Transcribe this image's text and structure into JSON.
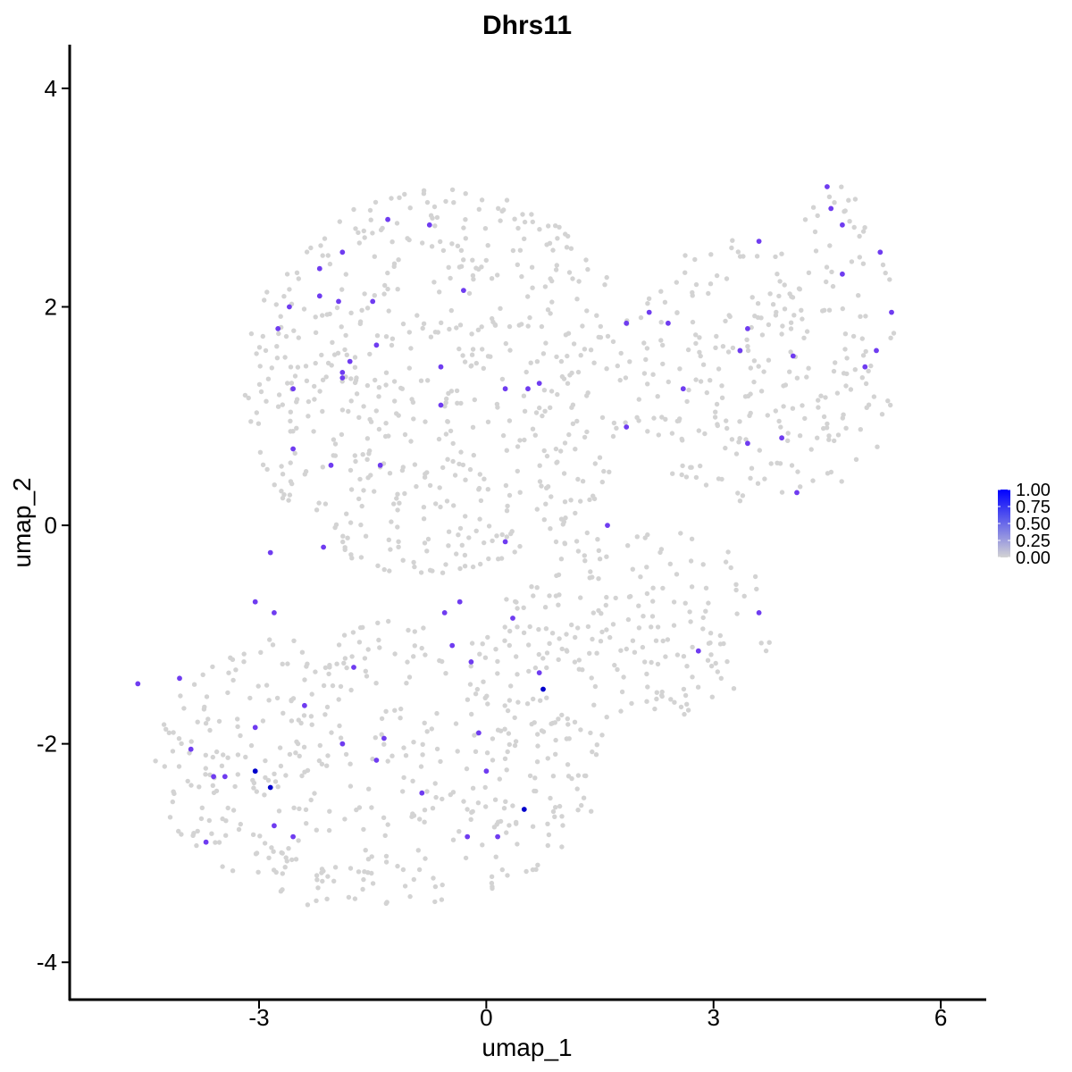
{
  "chart_data": {
    "type": "scatter",
    "title": "Dhrs11",
    "xlabel": "umap_1",
    "ylabel": "umap_2",
    "xlim": [
      -5.5,
      6.6
    ],
    "ylim": [
      -4.35,
      4.4
    ],
    "x_ticks": [
      -3,
      0,
      3,
      6
    ],
    "y_ticks": [
      -4,
      -2,
      0,
      2,
      4
    ],
    "x_tick_labels": [
      "-3",
      "0",
      "3",
      "6"
    ],
    "y_tick_labels": [
      "-4",
      "-2",
      "0",
      "2",
      "4"
    ],
    "grid": false,
    "legend": {
      "position": "right",
      "type": "colorbar",
      "labels": [
        "1.00",
        "0.75",
        "0.50",
        "0.25",
        "0.00"
      ],
      "values": [
        1.0,
        0.75,
        0.5,
        0.25,
        0.0
      ],
      "color_low": "#d3d3d3",
      "color_high": "#0000ff"
    },
    "background_points": {
      "color": "#d3d3d3",
      "count": 1500,
      "expression": 0,
      "region": "cells in a tilted cloud from about (-4.7,-1.3) to (5.3,2.4); lower-left lobe reaches down to about y=-3.5, upper-left lobe reaches about y=3.2"
    },
    "expressing_points": [
      {
        "x": -2.2,
        "y": 2.35,
        "value": 0.7
      },
      {
        "x": -1.9,
        "y": 2.5,
        "value": 0.7
      },
      {
        "x": -1.3,
        "y": 2.8,
        "value": 0.7
      },
      {
        "x": -0.75,
        "y": 2.75,
        "value": 0.7
      },
      {
        "x": -2.2,
        "y": 2.1,
        "value": 0.7
      },
      {
        "x": -1.95,
        "y": 2.05,
        "value": 0.7
      },
      {
        "x": -1.5,
        "y": 2.05,
        "value": 0.7
      },
      {
        "x": -0.3,
        "y": 2.15,
        "value": 0.7
      },
      {
        "x": -2.6,
        "y": 2.0,
        "value": 0.7
      },
      {
        "x": -2.75,
        "y": 1.8,
        "value": 0.7
      },
      {
        "x": -1.45,
        "y": 1.65,
        "value": 0.7
      },
      {
        "x": -1.8,
        "y": 1.5,
        "value": 0.7
      },
      {
        "x": -1.9,
        "y": 1.4,
        "value": 0.7
      },
      {
        "x": -1.9,
        "y": 1.35,
        "value": 0.7
      },
      {
        "x": -0.6,
        "y": 1.45,
        "value": 0.7
      },
      {
        "x": -2.55,
        "y": 1.25,
        "value": 0.7
      },
      {
        "x": -0.6,
        "y": 1.1,
        "value": 0.7
      },
      {
        "x": 0.25,
        "y": 1.25,
        "value": 0.7
      },
      {
        "x": 0.55,
        "y": 1.25,
        "value": 0.7
      },
      {
        "x": 0.7,
        "y": 1.3,
        "value": 0.7
      },
      {
        "x": -2.55,
        "y": 0.7,
        "value": 0.7
      },
      {
        "x": -2.05,
        "y": 0.55,
        "value": 0.7
      },
      {
        "x": -1.4,
        "y": 0.55,
        "value": 0.7
      },
      {
        "x": 1.85,
        "y": 1.85,
        "value": 0.7
      },
      {
        "x": 2.15,
        "y": 1.95,
        "value": 0.7
      },
      {
        "x": 2.4,
        "y": 1.85,
        "value": 0.7
      },
      {
        "x": 1.85,
        "y": 0.9,
        "value": 0.7
      },
      {
        "x": 2.6,
        "y": 1.25,
        "value": 0.7
      },
      {
        "x": 3.35,
        "y": 1.6,
        "value": 0.7
      },
      {
        "x": 3.45,
        "y": 1.8,
        "value": 0.7
      },
      {
        "x": 3.6,
        "y": 2.6,
        "value": 0.7
      },
      {
        "x": 3.45,
        "y": 0.75,
        "value": 0.7
      },
      {
        "x": 3.9,
        "y": 0.8,
        "value": 0.7
      },
      {
        "x": 4.05,
        "y": 1.55,
        "value": 0.7
      },
      {
        "x": 4.1,
        "y": 0.3,
        "value": 0.7
      },
      {
        "x": 4.5,
        "y": 3.1,
        "value": 0.7
      },
      {
        "x": 4.55,
        "y": 2.9,
        "value": 0.7
      },
      {
        "x": 4.7,
        "y": 2.75,
        "value": 0.7
      },
      {
        "x": 4.7,
        "y": 2.3,
        "value": 0.7
      },
      {
        "x": 5.2,
        "y": 2.5,
        "value": 0.7
      },
      {
        "x": 5.35,
        "y": 1.95,
        "value": 0.7
      },
      {
        "x": 5.0,
        "y": 1.45,
        "value": 0.7
      },
      {
        "x": 5.15,
        "y": 1.6,
        "value": 0.7
      },
      {
        "x": 1.6,
        "y": 0.0,
        "value": 0.7
      },
      {
        "x": 0.25,
        "y": -0.15,
        "value": 0.7
      },
      {
        "x": -2.85,
        "y": -0.25,
        "value": 0.7
      },
      {
        "x": -2.15,
        "y": -0.2,
        "value": 0.7
      },
      {
        "x": -3.05,
        "y": -0.7,
        "value": 0.7
      },
      {
        "x": -2.8,
        "y": -0.8,
        "value": 0.7
      },
      {
        "x": -0.35,
        "y": -0.7,
        "value": 0.7
      },
      {
        "x": -0.55,
        "y": -0.8,
        "value": 0.7
      },
      {
        "x": 0.35,
        "y": -0.85,
        "value": 0.7
      },
      {
        "x": -0.45,
        "y": -1.1,
        "value": 0.7
      },
      {
        "x": -0.2,
        "y": -1.25,
        "value": 0.7
      },
      {
        "x": 2.8,
        "y": -1.15,
        "value": 0.7
      },
      {
        "x": 3.6,
        "y": -0.8,
        "value": 0.7
      },
      {
        "x": -4.6,
        "y": -1.45,
        "value": 0.7
      },
      {
        "x": -4.05,
        "y": -1.4,
        "value": 0.7
      },
      {
        "x": -1.75,
        "y": -1.3,
        "value": 0.7
      },
      {
        "x": -2.4,
        "y": -1.65,
        "value": 0.7
      },
      {
        "x": 0.7,
        "y": -1.35,
        "value": 0.7
      },
      {
        "x": 0.75,
        "y": -1.5,
        "value": 1.0
      },
      {
        "x": -3.9,
        "y": -2.05,
        "value": 0.7
      },
      {
        "x": -3.05,
        "y": -1.85,
        "value": 0.7
      },
      {
        "x": -1.9,
        "y": -2.0,
        "value": 0.7
      },
      {
        "x": -1.35,
        "y": -1.95,
        "value": 0.7
      },
      {
        "x": -1.45,
        "y": -2.15,
        "value": 0.7
      },
      {
        "x": -0.1,
        "y": -1.9,
        "value": 0.7
      },
      {
        "x": -3.6,
        "y": -2.3,
        "value": 0.7
      },
      {
        "x": -3.45,
        "y": -2.3,
        "value": 0.7
      },
      {
        "x": -3.05,
        "y": -2.25,
        "value": 1.0
      },
      {
        "x": -2.85,
        "y": -2.4,
        "value": 1.0
      },
      {
        "x": -0.85,
        "y": -2.45,
        "value": 0.7
      },
      {
        "x": 0.0,
        "y": -2.25,
        "value": 0.7
      },
      {
        "x": 0.5,
        "y": -2.6,
        "value": 1.0
      },
      {
        "x": -2.8,
        "y": -2.75,
        "value": 0.7
      },
      {
        "x": -2.55,
        "y": -2.85,
        "value": 0.7
      },
      {
        "x": -3.7,
        "y": -2.9,
        "value": 0.7
      },
      {
        "x": -0.25,
        "y": -2.85,
        "value": 0.7
      },
      {
        "x": 0.15,
        "y": -2.85,
        "value": 0.7
      }
    ]
  }
}
